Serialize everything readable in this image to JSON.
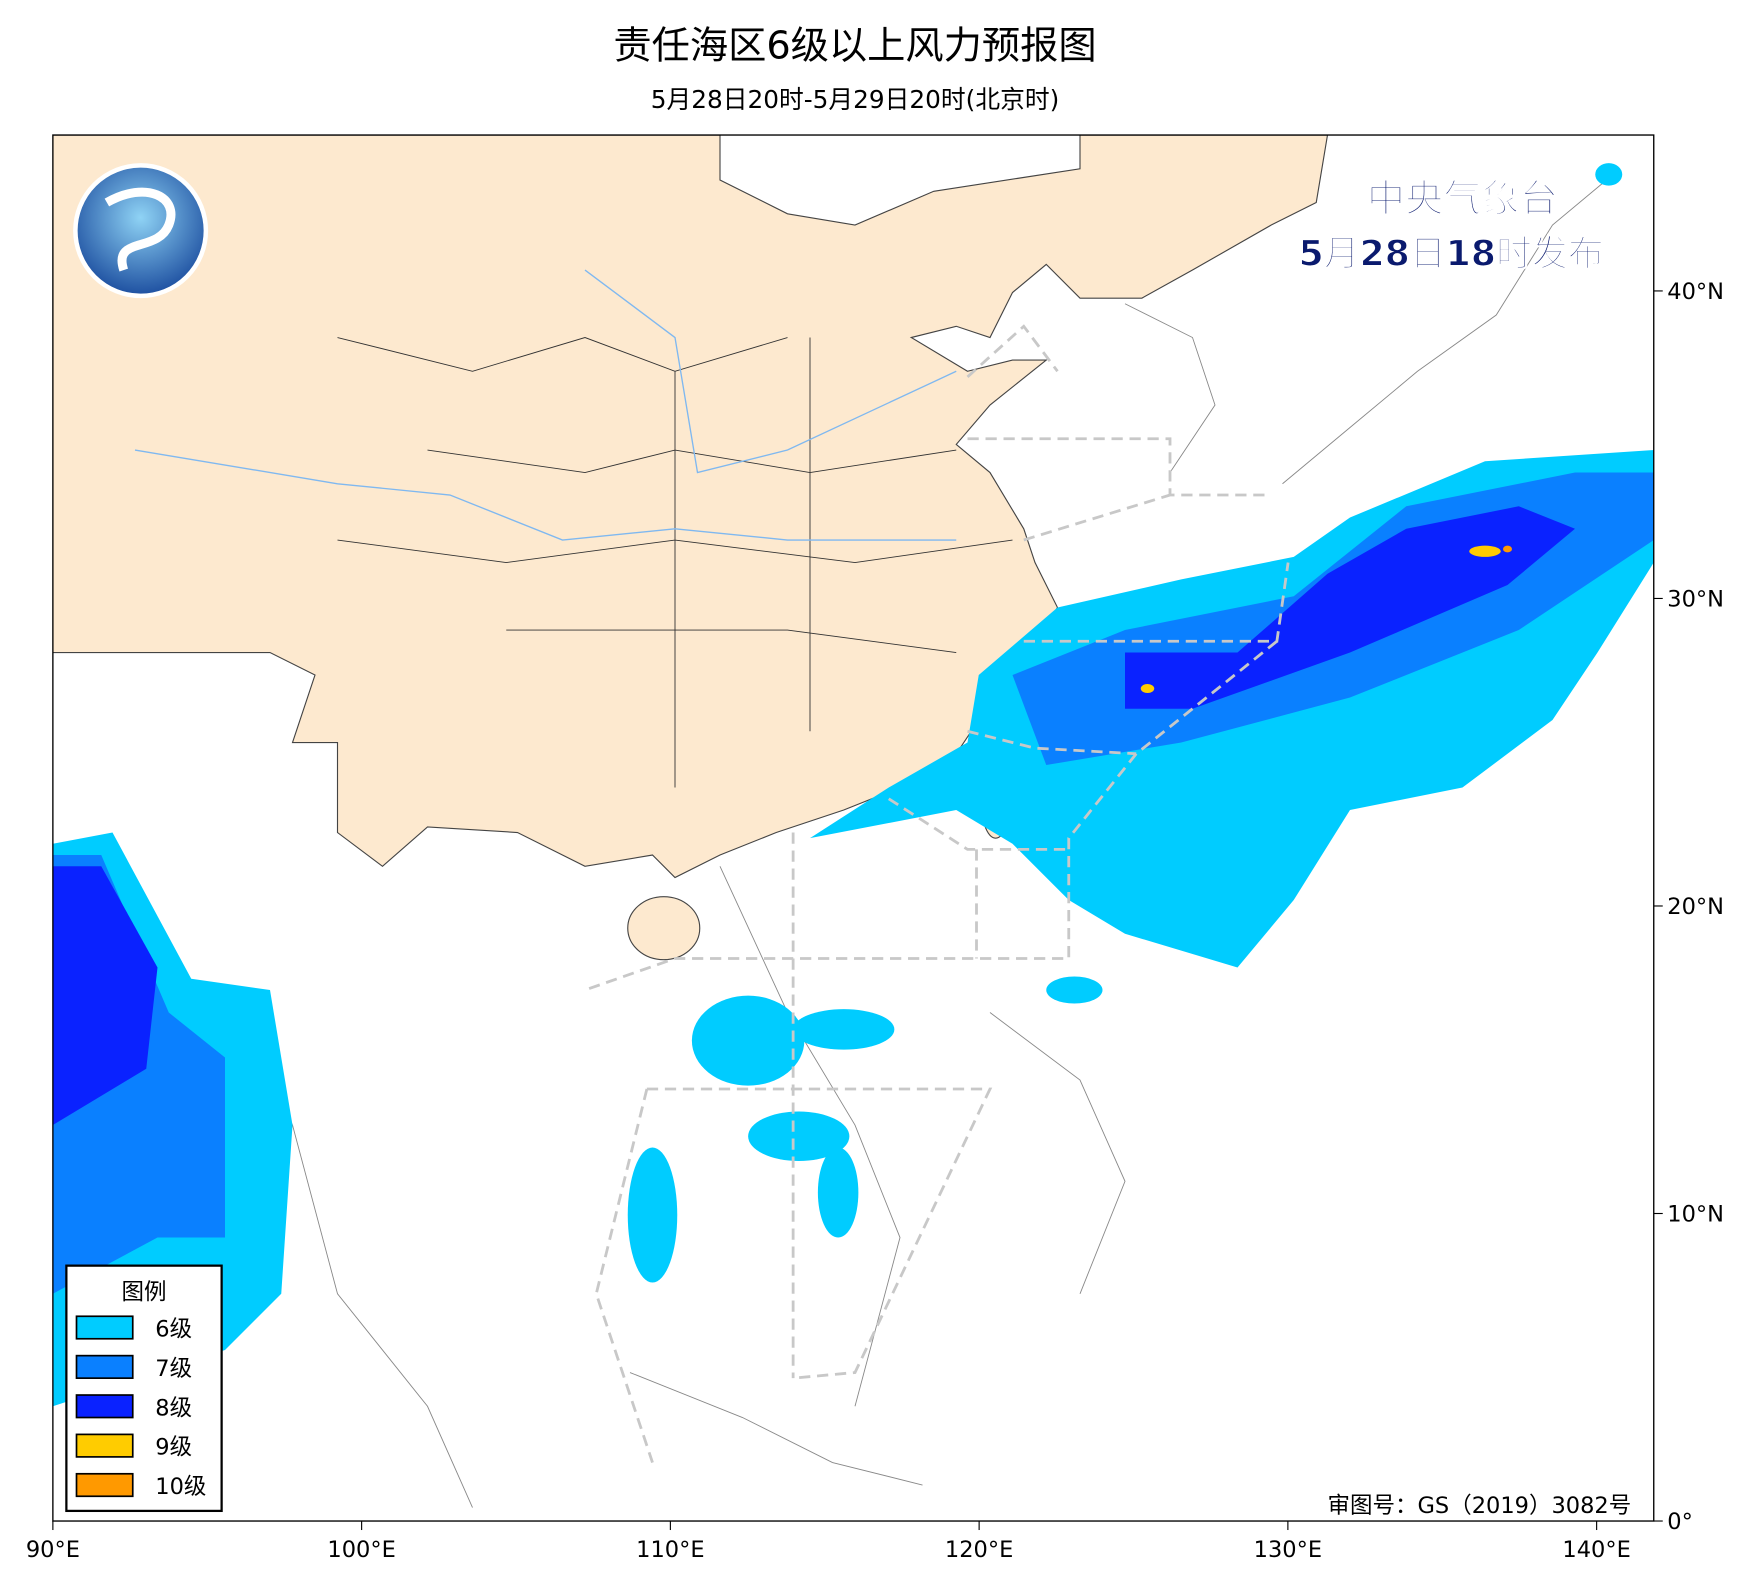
{
  "header": {
    "title": "责任海区6级以上风力预报图",
    "subtitle": "5月28日20时-5月29日20时(北京时)"
  },
  "issuer": {
    "name": "中央气象台",
    "issued": "5月28日18时发布"
  },
  "map": {
    "xlim": [
      90,
      141.85
    ],
    "ylim": [
      0,
      45.07
    ],
    "xticks": [
      {
        "value": 90,
        "label": "90°E"
      },
      {
        "value": 100,
        "label": "100°E"
      },
      {
        "value": 110,
        "label": "110°E"
      },
      {
        "value": 120,
        "label": "120°E"
      },
      {
        "value": 130,
        "label": "130°E"
      },
      {
        "value": 140,
        "label": "140°E"
      }
    ],
    "yticks": [
      {
        "value": 0,
        "label": "0°"
      },
      {
        "value": 10,
        "label": "10°N"
      },
      {
        "value": 20,
        "label": "20°N"
      },
      {
        "value": 30,
        "label": "30°N"
      },
      {
        "value": 40,
        "label": "40°N"
      }
    ]
  },
  "legend": {
    "title": "图例",
    "items": [
      {
        "label": "6级",
        "color": "#00ccff"
      },
      {
        "label": "7级",
        "color": "#0a80ff"
      },
      {
        "label": "8级",
        "color": "#0a22ff"
      },
      {
        "label": "9级",
        "color": "#ffcc00"
      },
      {
        "label": "10级",
        "color": "#ff9900"
      }
    ]
  },
  "footer": {
    "review": "审图号：GS（2019）3082号"
  }
}
